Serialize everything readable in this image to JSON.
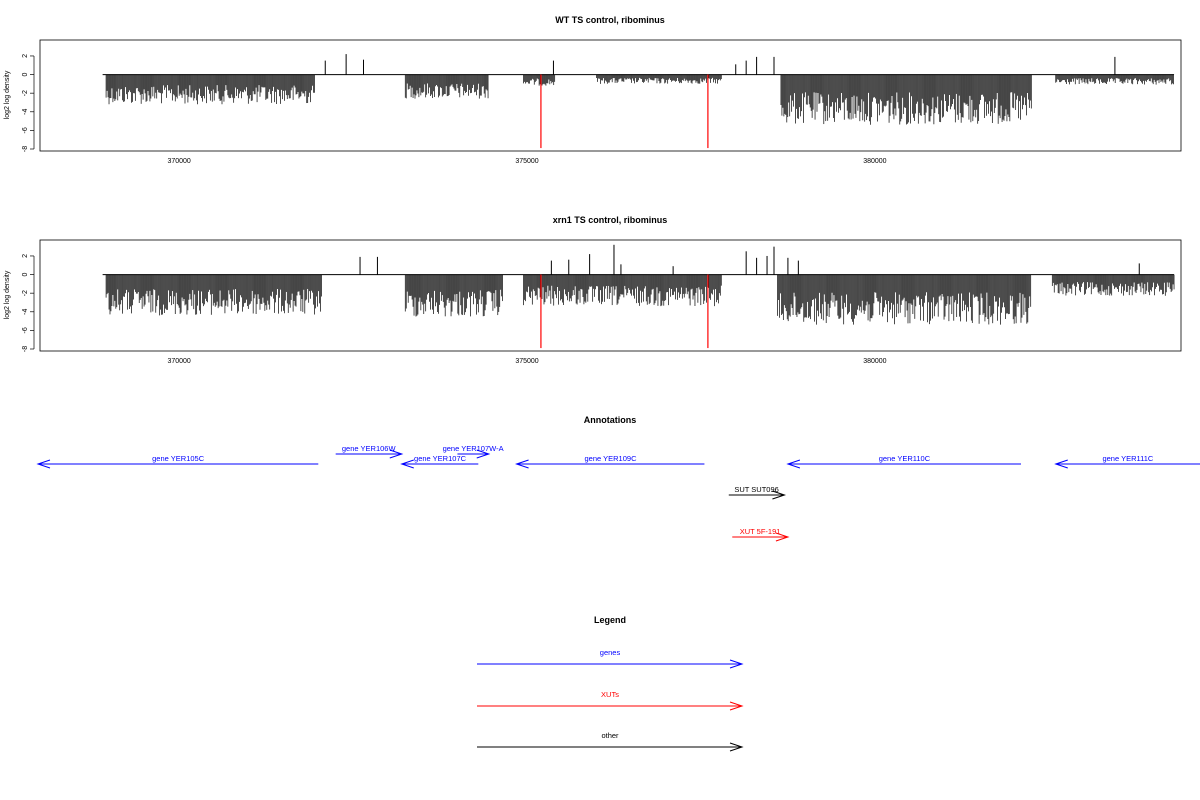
{
  "chart_data": [
    {
      "type": "bar",
      "title": "WT TS control, ribominus",
      "ylabel": "log2 log density",
      "xlim": [
        368000,
        384400
      ],
      "ylim": [
        -8,
        3.5
      ],
      "yticks": [
        "2",
        "0",
        "-2",
        "-4",
        "-6",
        "-8"
      ],
      "xticks": [
        "370000",
        "375000",
        "380000"
      ],
      "marker_positions": [
        375200,
        377600
      ],
      "marker_color": "#ff0000",
      "minus_strand_regions": [
        {
          "start": 368950,
          "end": 371950,
          "depth": 3.2
        },
        {
          "start": 373250,
          "end": 374450,
          "depth": 2.6
        },
        {
          "start": 374950,
          "end": 375400,
          "depth": 1.2
        },
        {
          "start": 376000,
          "end": 377800,
          "depth": 1.0
        },
        {
          "start": 378650,
          "end": 382250,
          "depth": 5.4
        },
        {
          "start": 382600,
          "end": 384300,
          "depth": 1.1
        }
      ],
      "plus_strand_peaks": [
        {
          "x": 372100,
          "y": 1.5
        },
        {
          "x": 372400,
          "y": 2.2
        },
        {
          "x": 372650,
          "y": 1.6
        },
        {
          "x": 375380,
          "y": 1.5
        },
        {
          "x": 378000,
          "y": 1.1
        },
        {
          "x": 378150,
          "y": 1.5
        },
        {
          "x": 378300,
          "y": 1.9
        },
        {
          "x": 378550,
          "y": 1.9
        },
        {
          "x": 383450,
          "y": 1.9
        }
      ]
    },
    {
      "type": "bar",
      "title": "xrn1 TS control, ribominus",
      "ylabel": "log2 log density",
      "xlim": [
        368000,
        384400
      ],
      "ylim": [
        -8,
        3.5
      ],
      "yticks": [
        "2",
        "0",
        "-2",
        "-4",
        "-6",
        "-8"
      ],
      "xticks": [
        "370000",
        "375000",
        "380000"
      ],
      "marker_positions": [
        375200,
        377600
      ],
      "marker_color": "#ff0000",
      "minus_strand_regions": [
        {
          "start": 368950,
          "end": 372050,
          "depth": 4.4
        },
        {
          "start": 373250,
          "end": 374650,
          "depth": 4.6
        },
        {
          "start": 374950,
          "end": 377800,
          "depth": 3.4
        },
        {
          "start": 378600,
          "end": 382250,
          "depth": 5.4
        },
        {
          "start": 382550,
          "end": 384300,
          "depth": 2.3
        }
      ],
      "plus_strand_peaks": [
        {
          "x": 372600,
          "y": 1.9
        },
        {
          "x": 372850,
          "y": 1.9
        },
        {
          "x": 375350,
          "y": 1.5
        },
        {
          "x": 375600,
          "y": 1.6
        },
        {
          "x": 375900,
          "y": 2.2
        },
        {
          "x": 376250,
          "y": 3.2
        },
        {
          "x": 376350,
          "y": 1.1
        },
        {
          "x": 377100,
          "y": 0.9
        },
        {
          "x": 378150,
          "y": 2.5
        },
        {
          "x": 378300,
          "y": 1.8
        },
        {
          "x": 378450,
          "y": 2.0
        },
        {
          "x": 378550,
          "y": 3.0
        },
        {
          "x": 378750,
          "y": 1.8
        },
        {
          "x": 378900,
          "y": 1.5
        },
        {
          "x": 383800,
          "y": 1.2
        }
      ]
    }
  ],
  "annotations": {
    "title": "Annotations",
    "features": [
      {
        "label": "gene YER105C",
        "start": 367700,
        "end": 372000,
        "strand": "-",
        "kind": "gene",
        "row": 1
      },
      {
        "label": "gene YER106W",
        "start": 372250,
        "end": 373200,
        "strand": "+",
        "kind": "gene",
        "row": 0
      },
      {
        "label": "gene YER107C",
        "start": 373200,
        "end": 374300,
        "strand": "-",
        "kind": "gene",
        "row": 1
      },
      {
        "label": "gene YER107W-A",
        "start": 374000,
        "end": 374450,
        "strand": "+",
        "kind": "gene",
        "row": 0
      },
      {
        "label": "gene YER109C",
        "start": 374850,
        "end": 377550,
        "strand": "-",
        "kind": "gene",
        "row": 1
      },
      {
        "label": "gene YER110C",
        "start": 378750,
        "end": 382100,
        "strand": "-",
        "kind": "gene",
        "row": 1
      },
      {
        "label": "gene YER111C",
        "start": 382600,
        "end": 386000,
        "strand": "-",
        "kind": "gene",
        "row": 1
      },
      {
        "label": "SUT SUT096",
        "start": 377900,
        "end": 378700,
        "strand": "+",
        "kind": "other",
        "row": 2
      },
      {
        "label": "XUT 5F-191",
        "start": 377950,
        "end": 378750,
        "strand": "+",
        "kind": "xut",
        "row": 3
      }
    ]
  },
  "legend": {
    "title": "Legend",
    "items": [
      {
        "label": "genes",
        "color": "#0000ff"
      },
      {
        "label": "XUTs",
        "color": "#ff0000"
      },
      {
        "label": "other",
        "color": "#000000"
      }
    ]
  },
  "colors": {
    "gene": "#0000ff",
    "xut": "#ff0000",
    "other": "#000000",
    "signal": "#000000"
  }
}
